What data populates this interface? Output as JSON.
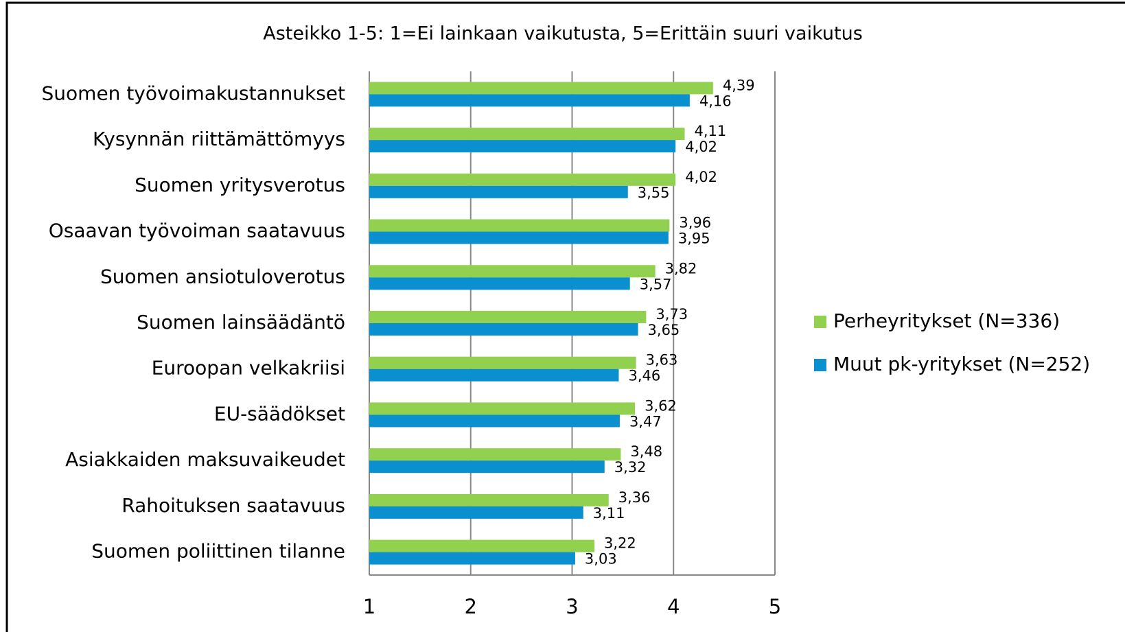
{
  "chart_data": {
    "type": "bar",
    "orientation": "horizontal",
    "title": "Asteikko 1-5: 1=Ei lainkaan vaikutusta, 5=Erittäin suuri vaikutus",
    "categories": [
      "Suomen työvoimakustannukset",
      "Kysynnän riittämättömyys",
      "Suomen yritysverotus",
      "Osaavan työvoiman saatavuus",
      "Suomen ansiotuloverotus",
      "Suomen lainsäädäntö",
      "Euroopan velkakriisi",
      "EU-säädökset",
      "Asiakkaiden maksuvaikeudet",
      "Rahoituksen saatavuus",
      "Suomen poliittinen tilanne"
    ],
    "series": [
      {
        "name": "Perheyritykset (N=336)",
        "color": "#92d050",
        "values": [
          4.39,
          4.11,
          4.02,
          3.96,
          3.82,
          3.73,
          3.63,
          3.62,
          3.48,
          3.36,
          3.22
        ],
        "value_labels": [
          "4,39",
          "4,11",
          "4,02",
          "3,96",
          "3,82",
          "3,73",
          "3,63",
          "3,62",
          "3,48",
          "3,36",
          "3,22"
        ]
      },
      {
        "name": "Muut pk-yritykset (N=252)",
        "color": "#0a8fcf",
        "values": [
          4.16,
          4.02,
          3.55,
          3.95,
          3.57,
          3.65,
          3.46,
          3.47,
          3.32,
          3.11,
          3.03
        ],
        "value_labels": [
          "4,16",
          "4,02",
          "3,55",
          "3,95",
          "3,57",
          "3,65",
          "3,46",
          "3,47",
          "3,32",
          "3,11",
          "3,03"
        ]
      }
    ],
    "xlim": [
      1,
      5
    ],
    "xticks": [
      1,
      2,
      3,
      4,
      5
    ],
    "grid": true,
    "legend": "right"
  }
}
